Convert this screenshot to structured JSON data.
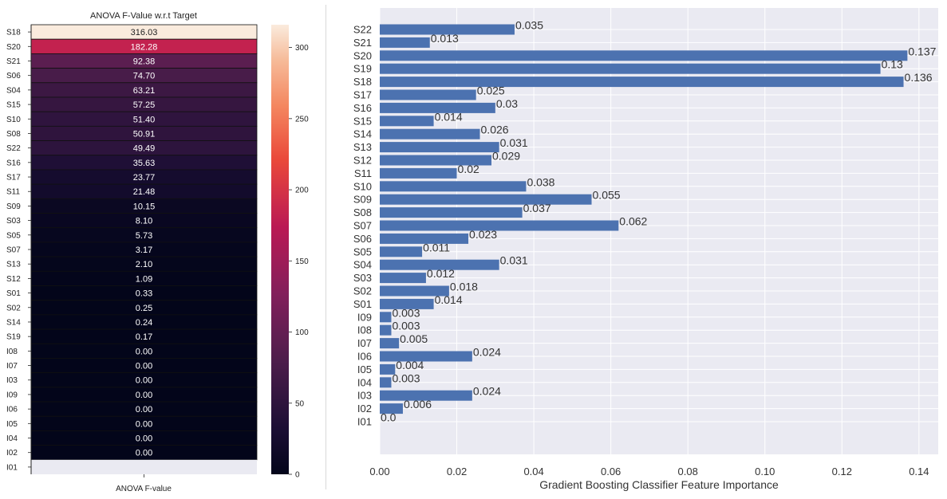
{
  "chart_data": [
    {
      "type": "heatmap",
      "title": "ANOVA F-Value w.r.t Target",
      "xlabel": "ANOVA F-value",
      "colorbar_ticks": [
        0,
        50,
        100,
        150,
        200,
        250,
        300
      ],
      "color_range": [
        0,
        316.03
      ],
      "rows": [
        {
          "label": "S18",
          "value": 316.03,
          "text": "316.03"
        },
        {
          "label": "S20",
          "value": 182.28,
          "text": "182.28"
        },
        {
          "label": "S21",
          "value": 92.38,
          "text": "92.38"
        },
        {
          "label": "S06",
          "value": 74.7,
          "text": "74.70"
        },
        {
          "label": "S04",
          "value": 63.21,
          "text": "63.21"
        },
        {
          "label": "S15",
          "value": 57.25,
          "text": "57.25"
        },
        {
          "label": "S10",
          "value": 51.4,
          "text": "51.40"
        },
        {
          "label": "S08",
          "value": 50.91,
          "text": "50.91"
        },
        {
          "label": "S22",
          "value": 49.49,
          "text": "49.49"
        },
        {
          "label": "S16",
          "value": 35.63,
          "text": "35.63"
        },
        {
          "label": "S17",
          "value": 23.77,
          "text": "23.77"
        },
        {
          "label": "S11",
          "value": 21.48,
          "text": "21.48"
        },
        {
          "label": "S09",
          "value": 10.15,
          "text": "10.15"
        },
        {
          "label": "S03",
          "value": 8.1,
          "text": "8.10"
        },
        {
          "label": "S05",
          "value": 5.73,
          "text": "5.73"
        },
        {
          "label": "S07",
          "value": 3.17,
          "text": "3.17"
        },
        {
          "label": "S13",
          "value": 2.1,
          "text": "2.10"
        },
        {
          "label": "S12",
          "value": 1.09,
          "text": "1.09"
        },
        {
          "label": "S01",
          "value": 0.33,
          "text": "0.33"
        },
        {
          "label": "S02",
          "value": 0.25,
          "text": "0.25"
        },
        {
          "label": "S14",
          "value": 0.24,
          "text": "0.24"
        },
        {
          "label": "S19",
          "value": 0.17,
          "text": "0.17"
        },
        {
          "label": "I08",
          "value": 0.0,
          "text": "0.00"
        },
        {
          "label": "I07",
          "value": 0.0,
          "text": "0.00"
        },
        {
          "label": "I03",
          "value": 0.0,
          "text": "0.00"
        },
        {
          "label": "I09",
          "value": 0.0,
          "text": "0.00"
        },
        {
          "label": "I06",
          "value": 0.0,
          "text": "0.00"
        },
        {
          "label": "I05",
          "value": 0.0,
          "text": "0.00"
        },
        {
          "label": "I04",
          "value": 0.0,
          "text": "0.00"
        },
        {
          "label": "I02",
          "value": 0.0,
          "text": "0.00"
        },
        {
          "label": "I01",
          "value": null,
          "text": ""
        }
      ]
    },
    {
      "type": "bar",
      "orientation": "horizontal",
      "xlabel": "Gradient Boosting Classifier Feature Importance",
      "xlim": [
        0,
        0.145
      ],
      "xticks": [
        "0.00",
        "0.02",
        "0.04",
        "0.06",
        "0.08",
        "0.10",
        "0.12",
        "0.14"
      ],
      "grid": true,
      "bar_color": "#4c72b0",
      "background_color": "#eaeaf2",
      "categories": [
        "S22",
        "S21",
        "S20",
        "S19",
        "S18",
        "S17",
        "S16",
        "S15",
        "S14",
        "S13",
        "S12",
        "S11",
        "S10",
        "S09",
        "S08",
        "S07",
        "S06",
        "S05",
        "S04",
        "S03",
        "S02",
        "S01",
        "I09",
        "I08",
        "I07",
        "I06",
        "I05",
        "I04",
        "I03",
        "I02",
        "I01"
      ],
      "values": [
        0.035,
        0.013,
        0.137,
        0.13,
        0.136,
        0.025,
        0.03,
        0.014,
        0.026,
        0.031,
        0.029,
        0.02,
        0.038,
        0.055,
        0.037,
        0.062,
        0.023,
        0.011,
        0.031,
        0.012,
        0.018,
        0.014,
        0.003,
        0.003,
        0.005,
        0.024,
        0.004,
        0.003,
        0.024,
        0.006,
        0.0
      ],
      "value_labels": [
        "0.035",
        "0.013",
        "0.137",
        "0.13",
        "0.136",
        "0.025",
        "0.03",
        "0.014",
        "0.026",
        "0.031",
        "0.029",
        "0.02",
        "0.038",
        "0.055",
        "0.037",
        "0.062",
        "0.023",
        "0.011",
        "0.031",
        "0.012",
        "0.018",
        "0.014",
        "0.003",
        "0.003",
        "0.005",
        "0.024",
        "0.004",
        "0.003",
        "0.024",
        "0.006",
        "0.0"
      ]
    }
  ]
}
